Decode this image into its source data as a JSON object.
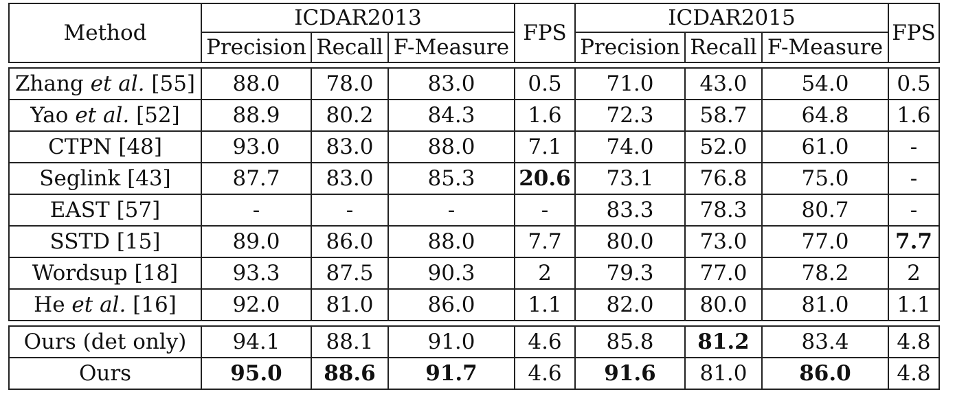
{
  "header": {
    "method": "Method",
    "dataset1": "ICDAR2013",
    "dataset2": "ICDAR2015",
    "fps": "FPS",
    "precision": "Precision",
    "recall": "Recall",
    "fmeasure": "F-Measure"
  },
  "rows": [
    {
      "name_pre": "Zhang ",
      "name_it": "et al.",
      "name_post": " [55]",
      "p13": "88.0",
      "r13": "78.0",
      "f13": "83.0",
      "fps13": "0.5",
      "p15": "71.0",
      "r15": "43.0",
      "f15": "54.0",
      "fps15": "0.5"
    },
    {
      "name_pre": "Yao ",
      "name_it": "et al.",
      "name_post": " [52]",
      "p13": "88.9",
      "r13": "80.2",
      "f13": "84.3",
      "fps13": "1.6",
      "p15": "72.3",
      "r15": "58.7",
      "f15": "64.8",
      "fps15": "1.6"
    },
    {
      "name_pre": "CTPN [48]",
      "name_it": "",
      "name_post": "",
      "p13": "93.0",
      "r13": "83.0",
      "f13": "88.0",
      "fps13": "7.1",
      "p15": "74.0",
      "r15": "52.0",
      "f15": "61.0",
      "fps15": "-"
    },
    {
      "name_pre": "Seglink [43]",
      "name_it": "",
      "name_post": "",
      "p13": "87.7",
      "r13": "83.0",
      "f13": "85.3",
      "fps13": "20.6",
      "p15": "73.1",
      "r15": "76.8",
      "f15": "75.0",
      "fps15": "-"
    },
    {
      "name_pre": "EAST [57]",
      "name_it": "",
      "name_post": "",
      "p13": "-",
      "r13": "-",
      "f13": "-",
      "fps13": "-",
      "p15": "83.3",
      "r15": "78.3",
      "f15": "80.7",
      "fps15": "-"
    },
    {
      "name_pre": "SSTD [15]",
      "name_it": "",
      "name_post": "",
      "p13": "89.0",
      "r13": "86.0",
      "f13": "88.0",
      "fps13": "7.7",
      "p15": "80.0",
      "r15": "73.0",
      "f15": "77.0",
      "fps15": "7.7"
    },
    {
      "name_pre": "Wordsup [18]",
      "name_it": "",
      "name_post": "",
      "p13": "93.3",
      "r13": "87.5",
      "f13": "90.3",
      "fps13": "2",
      "p15": "79.3",
      "r15": "77.0",
      "f15": "78.2",
      "fps15": "2"
    },
    {
      "name_pre": "He ",
      "name_it": "et al.",
      "name_post": " [16]",
      "p13": "92.0",
      "r13": "81.0",
      "f13": "86.0",
      "fps13": "1.1",
      "p15": "82.0",
      "r15": "80.0",
      "f15": "81.0",
      "fps15": "1.1"
    }
  ],
  "ours_rows": [
    {
      "name": "Ours (det only)",
      "p13": "94.1",
      "r13": "88.1",
      "f13": "91.0",
      "fps13": "4.6",
      "p15": "85.8",
      "r15": "81.2",
      "f15": "83.4",
      "fps15": "4.8"
    },
    {
      "name": "Ours",
      "p13": "95.0",
      "r13": "88.6",
      "f13": "91.7",
      "fps13": "4.6",
      "p15": "91.6",
      "r15": "81.0",
      "f15": "86.0",
      "fps15": "4.8"
    }
  ]
}
